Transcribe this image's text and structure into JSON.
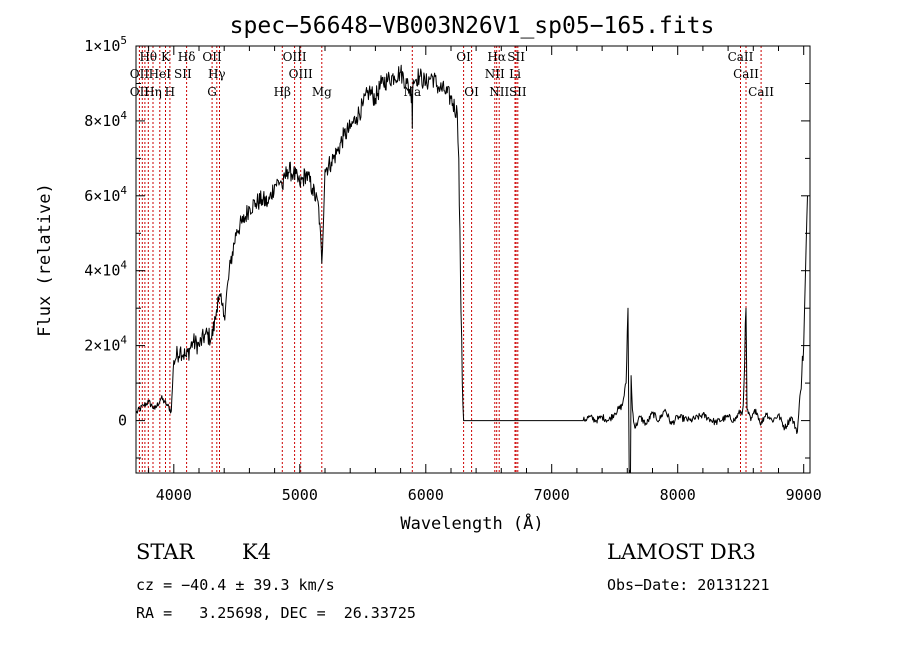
{
  "chart_data": {
    "type": "line",
    "title": "spec−56648−VB003N26V1_sp05−165.fits",
    "xlabel": "Wavelength (Å)",
    "ylabel": "Flux (relative)",
    "xlim": [
      3700,
      9050
    ],
    "ylim": [
      -14000,
      100000
    ],
    "x_ticks": [
      {
        "value": 4000,
        "label": "4000"
      },
      {
        "value": 5000,
        "label": "5000"
      },
      {
        "value": 6000,
        "label": "6000"
      },
      {
        "value": 7000,
        "label": "7000"
      },
      {
        "value": 8000,
        "label": "8000"
      },
      {
        "value": 9000,
        "label": "9000"
      }
    ],
    "y_ticks": [
      {
        "value": 0,
        "mant": "0",
        "exp": ""
      },
      {
        "value": 20000,
        "mant": "2×10",
        "exp": "4"
      },
      {
        "value": 40000,
        "mant": "4×10",
        "exp": "4"
      },
      {
        "value": 60000,
        "mant": "6×10",
        "exp": "4"
      },
      {
        "value": 80000,
        "mant": "8×10",
        "exp": "4"
      },
      {
        "value": 100000,
        "mant": "1×10",
        "exp": "5"
      }
    ],
    "spectrum": {
      "color": "#000000",
      "x": [
        3700,
        3760,
        3800,
        3850,
        3900,
        3950,
        3980,
        4000,
        4050,
        4100,
        4150,
        4200,
        4250,
        4300,
        4330,
        4350,
        4380,
        4400,
        4450,
        4500,
        4550,
        4600,
        4650,
        4700,
        4750,
        4800,
        4850,
        4862,
        4900,
        4950,
        5000,
        5050,
        5100,
        5150,
        5175,
        5200,
        5250,
        5300,
        5350,
        5400,
        5450,
        5500,
        5550,
        5600,
        5650,
        5700,
        5750,
        5800,
        5850,
        5890,
        5893,
        5896,
        5900,
        5950,
        6000,
        6050,
        6100,
        6150,
        6200,
        6250,
        6262,
        6275,
        6290,
        6300,
        6350,
        6500,
        6700,
        6900,
        7100,
        7200,
        7250,
        7300,
        7350,
        7400,
        7450,
        7500,
        7560,
        7590,
        7605,
        7615,
        7625,
        7630,
        7640,
        7660,
        7700,
        7750,
        7800,
        7850,
        7900,
        7950,
        8000,
        8100,
        8200,
        8300,
        8400,
        8450,
        8498,
        8510,
        8520,
        8542,
        8550,
        8580,
        8620,
        8662,
        8700,
        8750,
        8800,
        8850,
        8900,
        8950,
        9000,
        9030
      ],
      "y": [
        2000,
        4000,
        5000,
        3000,
        6000,
        4000,
        2500,
        16000,
        19000,
        17000,
        21000,
        20000,
        23000,
        22000,
        27000,
        33000,
        31000,
        28000,
        42000,
        51000,
        53000,
        57000,
        58000,
        59000,
        58000,
        63000,
        64000,
        62000,
        67000,
        66000,
        63000,
        66000,
        62000,
        57000,
        42000,
        67000,
        69000,
        72000,
        76000,
        78000,
        81000,
        84000,
        88000,
        86000,
        90000,
        91000,
        92000,
        93000,
        90000,
        87000,
        78000,
        88000,
        91000,
        92000,
        90000,
        92000,
        89000,
        88000,
        86000,
        82000,
        70000,
        40000,
        10000,
        0,
        0,
        0,
        0,
        0,
        0,
        0,
        0,
        1000,
        0,
        1000,
        0,
        2000,
        4000,
        10000,
        30000,
        -14000,
        -14000,
        12000,
        3000,
        -2000,
        1000,
        -1000,
        2000,
        0,
        3000,
        -1000,
        1000,
        0,
        1500,
        -500,
        1000,
        0,
        2500,
        1500,
        4000,
        30000,
        3000,
        0,
        3000,
        -1000,
        2000,
        0,
        1500,
        -2000,
        1000,
        -3000,
        20000,
        60000
      ]
    },
    "lines": {
      "color": "#cc0000",
      "wavelengths": [
        3727,
        3750,
        3771,
        3798,
        3835,
        3889,
        3934,
        3969,
        4102,
        4304,
        4341,
        4363,
        4861,
        4959,
        5007,
        5175,
        5893,
        6300,
        6364,
        6548,
        6563,
        6583,
        6708,
        6717,
        6731,
        8498,
        8542,
        8662
      ]
    },
    "line_labels": [
      {
        "text": "Hθ",
        "x": 3798,
        "row": 1
      },
      {
        "text": "K",
        "x": 3934,
        "row": 1
      },
      {
        "text": "Hδ",
        "x": 4102,
        "row": 1
      },
      {
        "text": "OII",
        "x": 4304,
        "row": 1
      },
      {
        "text": "OIII",
        "x": 4959,
        "row": 1
      },
      {
        "text": "OI",
        "x": 6300,
        "row": 1
      },
      {
        "text": "Hα",
        "x": 6563,
        "row": 1
      },
      {
        "text": "SII",
        "x": 6717,
        "row": 1
      },
      {
        "text": "CaII",
        "x": 8498,
        "row": 1
      },
      {
        "text": "OII",
        "x": 3727,
        "row": 2
      },
      {
        "text": "HeI",
        "x": 3889,
        "row": 2
      },
      {
        "text": "SII",
        "x": 4072,
        "row": 2
      },
      {
        "text": "Hγ",
        "x": 4341,
        "row": 2
      },
      {
        "text": "OIII",
        "x": 5007,
        "row": 2
      },
      {
        "text": "NII",
        "x": 6548,
        "row": 2
      },
      {
        "text": "Li",
        "x": 6708,
        "row": 2
      },
      {
        "text": "CaII",
        "x": 8542,
        "row": 2
      },
      {
        "text": "OII",
        "x": 3727,
        "row": 3
      },
      {
        "text": "Hη",
        "x": 3835,
        "row": 3
      },
      {
        "text": "H",
        "x": 3969,
        "row": 3
      },
      {
        "text": "G",
        "x": 4304,
        "row": 3
      },
      {
        "text": "Hβ",
        "x": 4861,
        "row": 3
      },
      {
        "text": "Mg",
        "x": 5175,
        "row": 3
      },
      {
        "text": "Na",
        "x": 5893,
        "row": 3
      },
      {
        "text": "OI",
        "x": 6364,
        "row": 3
      },
      {
        "text": "NII",
        "x": 6583,
        "row": 3
      },
      {
        "text": "SII",
        "x": 6731,
        "row": 3
      },
      {
        "text": "CaII",
        "x": 8662,
        "row": 3
      }
    ]
  },
  "info": {
    "class_label": "STAR",
    "subclass": "K4",
    "cz_line": "cz = −40.4 ± 39.3 km/s",
    "radec_line": "RA =   3.25698, DEC =  26.33725",
    "survey": "LAMOST DR3",
    "obs_date": "Obs−Date: 20131221"
  }
}
